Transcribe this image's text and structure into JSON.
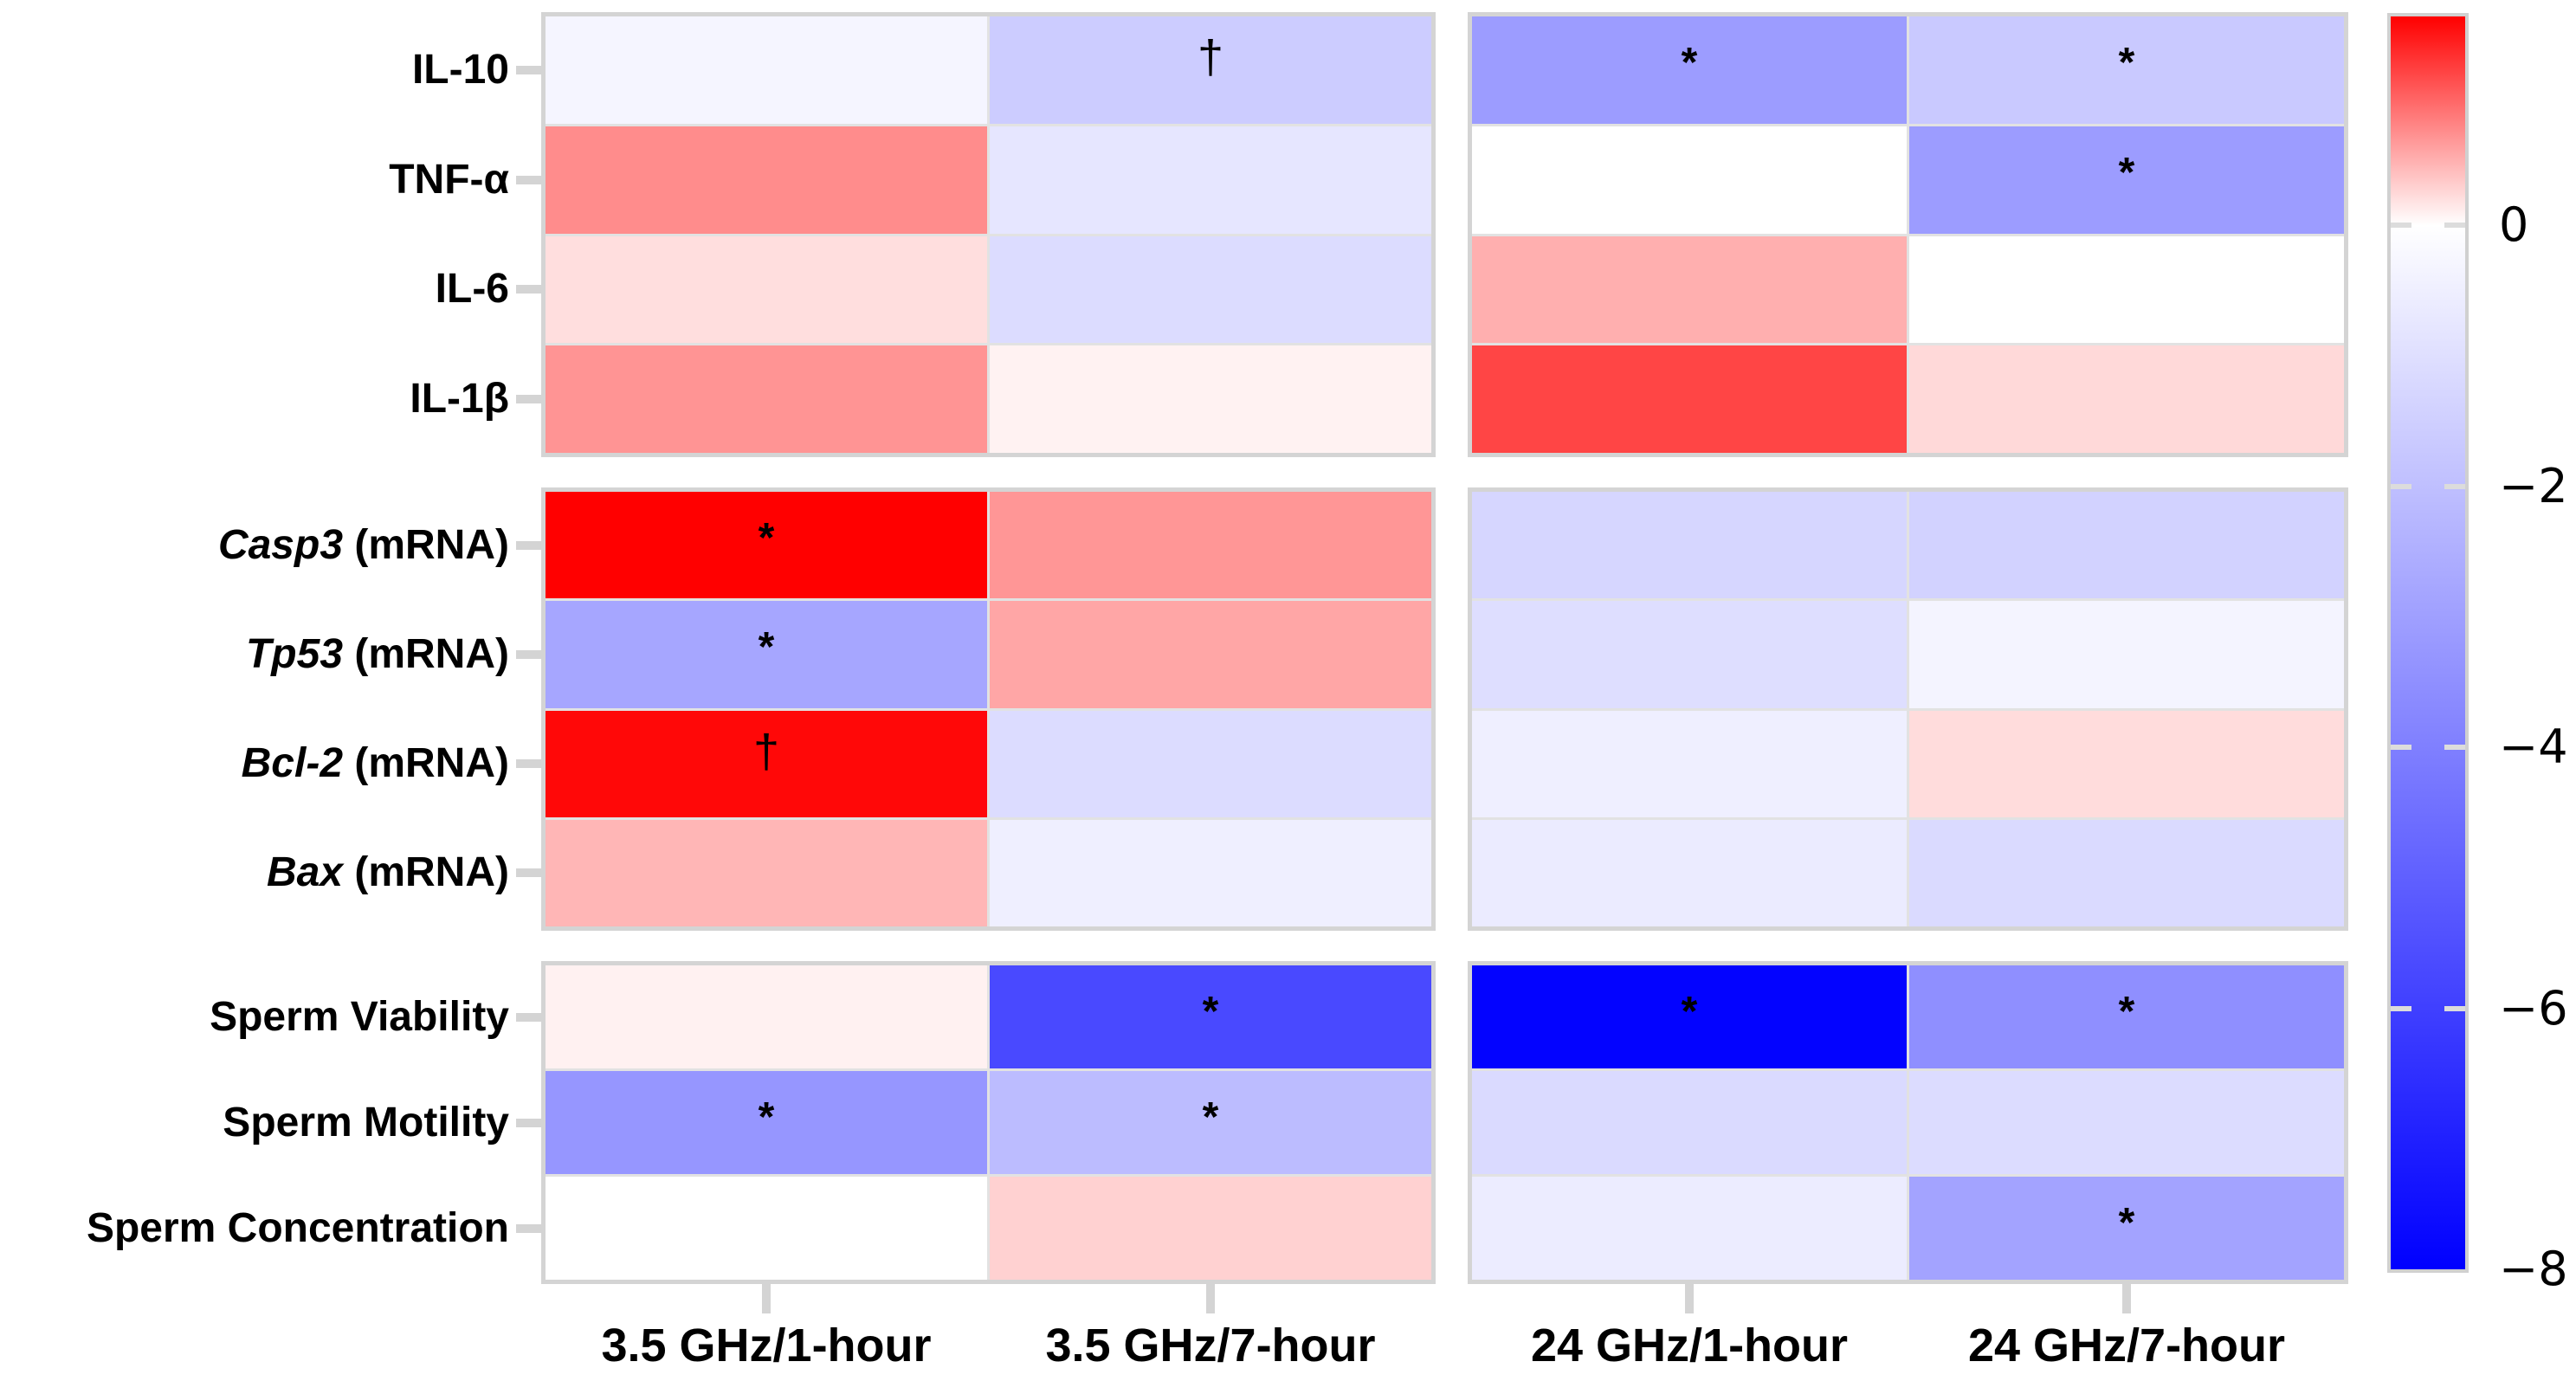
{
  "chart_data": {
    "type": "heatmap",
    "title": "",
    "x_categories": [
      "3.5 GHz/1-hour",
      "3.5 GHz/7-hour",
      "24 GHz/1-hour",
      "24 GHz/7-hour"
    ],
    "col_groups": [
      {
        "name": "3-5-ghz",
        "col_indices": [
          0,
          1
        ]
      },
      {
        "name": "24-ghz",
        "col_indices": [
          2,
          3
        ]
      }
    ],
    "row_groups": [
      {
        "name": "cytokines",
        "rows": [
          {
            "label_italic": "",
            "label": "IL-10",
            "values": [
              -0.3,
              -1.6,
              -3.1,
              -1.7
            ],
            "annotations": [
              "",
              "†",
              "*",
              "*"
            ]
          },
          {
            "label_italic": "",
            "label": "TNF-α",
            "values": [
              0.72,
              -0.8,
              0,
              -3.1
            ],
            "annotations": [
              "",
              "",
              "",
              "*"
            ]
          },
          {
            "label_italic": "",
            "label": "IL-6",
            "values": [
              0.21,
              -1.1,
              0.5,
              0
            ],
            "annotations": [
              "",
              "",
              "",
              ""
            ]
          },
          {
            "label_italic": "",
            "label": "IL-1β",
            "values": [
              0.67,
              0.08,
              1.17,
              0.24
            ],
            "annotations": [
              "",
              "",
              "",
              ""
            ]
          }
        ]
      },
      {
        "name": "mrna",
        "rows": [
          {
            "label_italic": "Casp3",
            "label": " (mRNA)",
            "values": [
              1.6,
              0.66,
              -1.3,
              -1.4
            ],
            "annotations": [
              "*",
              "",
              "",
              ""
            ]
          },
          {
            "label_italic": "Tp53",
            "label": " (mRNA)",
            "values": [
              -2.8,
              0.56,
              -1.05,
              -0.35
            ],
            "annotations": [
              "*",
              "",
              "",
              ""
            ]
          },
          {
            "label_italic": "Bcl-2",
            "label": " (mRNA)",
            "values": [
              1.55,
              -1.1,
              -0.5,
              0.22
            ],
            "annotations": [
              "†",
              "",
              "",
              ""
            ]
          },
          {
            "label_italic": "Bax",
            "label": " (mRNA)",
            "values": [
              0.46,
              -0.5,
              -0.63,
              -1.15
            ],
            "annotations": [
              "",
              "",
              "",
              ""
            ]
          }
        ]
      },
      {
        "name": "sperm",
        "rows": [
          {
            "label_italic": "",
            "label": "Sperm Viability",
            "values": [
              0.09,
              -5.7,
              -7.9,
              -3.5
            ],
            "annotations": [
              "",
              "*",
              "*",
              "*"
            ]
          },
          {
            "label_italic": "",
            "label": "Sperm Motility",
            "values": [
              -3.3,
              -2.1,
              -1.15,
              -1.1
            ],
            "annotations": [
              "*",
              "*",
              "",
              ""
            ]
          },
          {
            "label_italic": "",
            "label": "Sperm Concentration",
            "values": [
              0,
              0.29,
              -0.6,
              -2.9
            ],
            "annotations": [
              "",
              "",
              "",
              "*"
            ]
          }
        ]
      }
    ],
    "colorbar": {
      "tick_labels": [
        "0",
        "−2",
        "−4",
        "−6",
        "−8"
      ],
      "tick_values": [
        0,
        -2,
        -4,
        -6,
        -8
      ],
      "vmax": 1.6,
      "vmin": -8,
      "color_max": "#ff0000",
      "color_mid": "#ffffff",
      "color_min": "#0000ff"
    },
    "annotation_glyphs": {
      "significant": "*",
      "trend": "†"
    },
    "legend_position": "right",
    "grid": "faceted"
  }
}
